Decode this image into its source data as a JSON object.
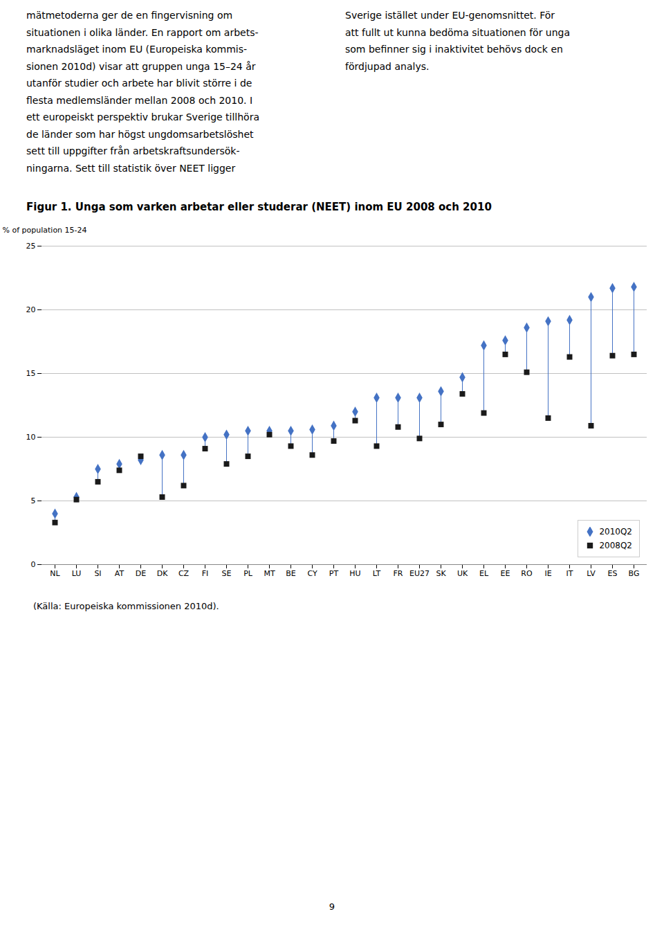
{
  "chart_data": {
    "type": "scatter",
    "title": "Figur 1. Unga som varken arbetar eller studerar (NEET) inom EU 2008 och 2010",
    "ylabel": "% of population 15-24",
    "categories": [
      "NL",
      "LU",
      "SI",
      "AT",
      "DE",
      "DK",
      "CZ",
      "FI",
      "SE",
      "PL",
      "MT",
      "BE",
      "CY",
      "PT",
      "HU",
      "LT",
      "FR",
      "EU27",
      "SK",
      "UK",
      "EL",
      "EE",
      "RO",
      "IE",
      "IT",
      "LV",
      "ES",
      "BG"
    ],
    "series": [
      {
        "name": "2010Q2",
        "color": "#4472C4",
        "marker": "diamond",
        "values": [
          4.0,
          5.3,
          7.5,
          7.9,
          8.2,
          8.6,
          8.6,
          10.0,
          10.2,
          10.5,
          10.5,
          10.5,
          10.6,
          10.9,
          12.0,
          13.1,
          13.1,
          13.1,
          13.6,
          14.7,
          17.2,
          17.6,
          18.6,
          19.1,
          19.2,
          21.0,
          21.7,
          21.8
        ]
      },
      {
        "name": "2008Q2",
        "color": "#1a1a1a",
        "marker": "square",
        "values": [
          3.3,
          5.1,
          6.5,
          7.4,
          8.5,
          5.3,
          6.2,
          9.1,
          7.9,
          8.5,
          10.2,
          9.3,
          8.6,
          9.7,
          11.3,
          9.3,
          10.8,
          9.9,
          11.0,
          13.4,
          11.9,
          16.5,
          15.1,
          11.5,
          16.3,
          10.9,
          16.4,
          16.5
        ]
      }
    ],
    "ylim": [
      0,
      25
    ],
    "yticks": [
      0,
      5,
      10,
      15,
      20,
      25
    ],
    "grid": true,
    "legend": "lower right",
    "annotations": [
      "mätmetoderna ger de en fingervisning om\nsituationen i olika länder. En rapport om arbets-\nmarknadsläget inom EU (Europeiska kommis-\nsionen 2010d) visar att gruppen unga 15–24 år\nutanför studier och arbete har blivit större i de\nflesta medlemsländer mellan 2008 och 2010. I\nett europeiskt perspektiv brukar Sverige tillhöra\nde länder som har högst ungdomsarbetslöshet\nsett till uppgifter från arbetskraftsundersök-\nningarna. Sett till statistik över NEET ligger",
      "Sverige istället under EU-genomsnittet. För\natt fullt ut kunna bedöma situationen för unga\nsom befinner sig i inaktivitet behövs dock en\nfördjupad analys.",
      "(Källa: Europeiska kommissionen 2010d).",
      "9"
    ]
  }
}
